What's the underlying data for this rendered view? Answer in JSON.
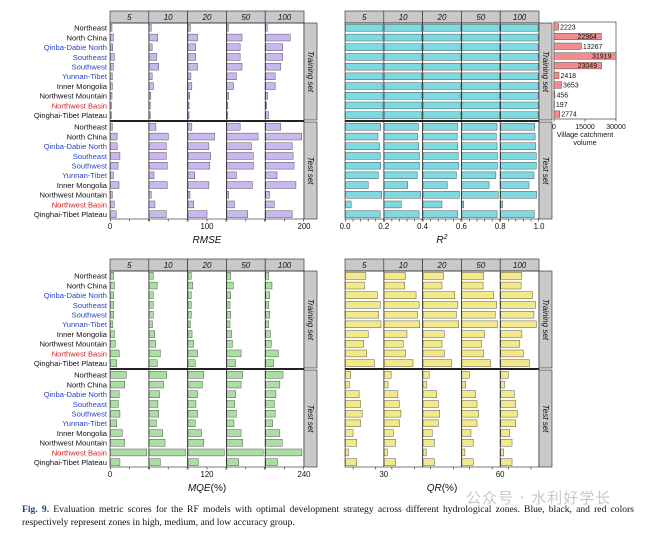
{
  "figure": {
    "caption_label": "Fig. 9.",
    "caption_text": "Evaluation metric scores for the RF models with optimal development strategy across different hydrological zones. Blue, black, and red colors respectively represent zones in high, medium, and low accuracy group.",
    "watermark": "公众号 · 水利好学长"
  },
  "colors": {
    "rmse": "#c8b8ee",
    "r2": "#7fd9e0",
    "mqe": "#a9e0a2",
    "qr": "#f4e98a",
    "catchment": "#f08c8c",
    "high": "#2745c4",
    "medium": "#111111",
    "low": "#d21f1f",
    "strip": "#c9c9c9",
    "band": "#888888"
  },
  "chart_data": {
    "zones": [
      {
        "name": "Northeast",
        "group": "medium"
      },
      {
        "name": "North China",
        "group": "medium"
      },
      {
        "name": "Qinba-Dabie North",
        "group": "high"
      },
      {
        "name": "Southeast",
        "group": "high"
      },
      {
        "name": "Southwest",
        "group": "high"
      },
      {
        "name": "Yunnan-Tibet",
        "group": "high"
      },
      {
        "name": "Inner Mongolia",
        "group": "medium"
      },
      {
        "name": "Northwest Mountain",
        "group": "medium"
      },
      {
        "name": "Northwest Basin",
        "group": "low"
      },
      {
        "name": "Qinghai-Tibet Plateau",
        "group": "medium"
      }
    ],
    "strategies": [
      "5",
      "10",
      "20",
      "50",
      "100"
    ],
    "sets": [
      "Training set",
      "Test set"
    ],
    "catchment": {
      "title": "Village catchment volume",
      "values": [
        2223,
        22964,
        13267,
        31919,
        23049,
        2418,
        3653,
        456,
        197,
        2774
      ],
      "xlim": [
        0,
        30000
      ],
      "ticks": [
        0,
        15000,
        30000
      ]
    },
    "panels": [
      {
        "type": "bar",
        "metric": "rmse",
        "xlabel": "RMSE",
        "sup": "",
        "xlim": [
          0,
          200
        ],
        "ticks": [
          0,
          100,
          200
        ],
        "ticklabels": [
          "0",
          "100",
          "200"
        ],
        "training": [
          [
            8,
            10,
            12,
            8,
            8
          ],
          [
            15,
            45,
            50,
            80,
            130
          ],
          [
            12,
            15,
            40,
            70,
            90
          ],
          [
            20,
            40,
            40,
            70,
            90
          ],
          [
            15,
            50,
            50,
            80,
            80
          ],
          [
            10,
            15,
            15,
            50,
            50
          ],
          [
            10,
            22,
            20,
            35,
            50
          ],
          [
            8,
            8,
            8,
            10,
            10
          ],
          [
            5,
            5,
            5,
            5,
            5
          ],
          [
            5,
            5,
            5,
            5,
            15
          ]
        ],
        "test": [
          [
            10,
            35,
            20,
            70,
            80
          ],
          [
            35,
            100,
            140,
            165,
            190
          ],
          [
            35,
            90,
            110,
            130,
            140
          ],
          [
            50,
            90,
            120,
            140,
            145
          ],
          [
            40,
            95,
            115,
            140,
            150
          ],
          [
            15,
            25,
            35,
            50,
            60
          ],
          [
            45,
            95,
            110,
            135,
            160
          ],
          [
            10,
            10,
            10,
            10,
            20
          ],
          [
            20,
            30,
            30,
            40,
            45
          ],
          [
            30,
            90,
            100,
            110,
            140
          ]
        ]
      },
      {
        "type": "bar",
        "metric": "r2",
        "xlabel": "R",
        "sup": "2",
        "xlim": [
          0,
          1
        ],
        "ticks": [
          0,
          0.2,
          0.4,
          0.6,
          0.8,
          1.0
        ],
        "ticklabels": [
          "0.0",
          "0.2",
          "0.4",
          "0.6",
          "0.8",
          "1.0"
        ],
        "training": [
          [
            0.99,
            0.99,
            0.99,
            0.99,
            0.99
          ],
          [
            0.99,
            0.99,
            0.99,
            0.99,
            0.99
          ],
          [
            0.99,
            0.99,
            0.99,
            0.99,
            0.99
          ],
          [
            0.99,
            0.99,
            0.99,
            0.99,
            0.99
          ],
          [
            0.99,
            0.99,
            0.99,
            0.99,
            0.99
          ],
          [
            0.99,
            0.99,
            0.99,
            0.99,
            0.99
          ],
          [
            0.99,
            0.99,
            0.99,
            0.99,
            0.99
          ],
          [
            0.99,
            0.99,
            0.99,
            0.99,
            0.99
          ],
          [
            0.99,
            0.99,
            0.99,
            0.99,
            0.99
          ],
          [
            0.99,
            0.99,
            0.99,
            0.99,
            0.99
          ]
        ],
        "test": [
          [
            0.93,
            0.9,
            0.92,
            0.93,
            0.9
          ],
          [
            0.86,
            0.88,
            0.9,
            0.91,
            0.91
          ],
          [
            0.9,
            0.91,
            0.92,
            0.93,
            0.93
          ],
          [
            0.92,
            0.93,
            0.93,
            0.94,
            0.94
          ],
          [
            0.93,
            0.93,
            0.94,
            0.94,
            0.94
          ],
          [
            0.87,
            0.87,
            0.88,
            0.9,
            0.88
          ],
          [
            0.6,
            0.62,
            0.64,
            0.72,
            0.75
          ],
          [
            0.96,
            0.96,
            0.96,
            0.96,
            0.95
          ],
          [
            0.15,
            0.45,
            0.5,
            0.05,
            0.05
          ],
          [
            0.92,
            0.92,
            0.92,
            0.93,
            0.89
          ]
        ]
      },
      {
        "type": "bar",
        "metric": "mqe",
        "xlabel": "MQE",
        "sup": "",
        "unit": "(%)",
        "xlim": [
          0,
          240
        ],
        "ticks": [
          0,
          120,
          240
        ],
        "ticklabels": [
          "0",
          "120",
          "240"
        ],
        "training": [
          [
            20,
            25,
            20,
            25,
            20
          ],
          [
            25,
            50,
            30,
            40,
            40
          ],
          [
            20,
            25,
            20,
            25,
            25
          ],
          [
            20,
            25,
            20,
            20,
            20
          ],
          [
            20,
            25,
            20,
            25,
            25
          ],
          [
            15,
            20,
            15,
            20,
            20
          ],
          [
            25,
            35,
            25,
            30,
            30
          ],
          [
            30,
            40,
            35,
            35,
            35
          ],
          [
            55,
            70,
            60,
            90,
            80
          ],
          [
            40,
            50,
            45,
            55,
            50
          ]
        ],
        "test": [
          [
            100,
            110,
            100,
            100,
            110
          ],
          [
            90,
            90,
            90,
            90,
            90
          ],
          [
            55,
            65,
            60,
            55,
            65
          ],
          [
            50,
            55,
            50,
            50,
            55
          ],
          [
            60,
            60,
            60,
            60,
            60
          ],
          [
            40,
            45,
            45,
            45,
            45
          ],
          [
            75,
            85,
            85,
            90,
            90
          ],
          [
            90,
            100,
            100,
            100,
            105
          ],
          [
            230,
            230,
            230,
            230,
            230
          ],
          [
            60,
            70,
            65,
            75,
            75
          ]
        ]
      },
      {
        "type": "bar",
        "metric": "qr",
        "xlabel": "QR",
        "sup": "",
        "unit": "(%)",
        "xlim": [
          20,
          70
        ],
        "ticks": [
          30,
          60
        ],
        "ticklabels": [
          "30",
          "60"
        ],
        "training": [
          [
            47,
            48,
            47,
            49,
            48
          ],
          [
            45,
            47,
            45,
            48,
            47
          ],
          [
            62,
            62,
            62,
            62,
            62
          ],
          [
            66,
            66,
            66,
            66,
            66
          ],
          [
            64,
            64,
            64,
            64,
            64
          ],
          [
            67,
            67,
            67,
            67,
            67
          ],
          [
            50,
            50,
            48,
            50,
            48
          ],
          [
            44,
            45,
            45,
            46,
            45
          ],
          [
            48,
            48,
            48,
            49,
            50
          ],
          [
            58,
            58,
            58,
            58,
            58
          ]
        ],
        "test": [
          [
            27,
            29,
            28,
            30,
            30
          ],
          [
            25,
            25,
            25,
            25,
            25
          ],
          [
            38,
            38,
            38,
            38,
            38
          ],
          [
            40,
            40,
            40,
            40,
            40
          ],
          [
            42,
            42,
            42,
            42,
            42
          ],
          [
            40,
            40,
            40,
            40,
            40
          ],
          [
            30,
            32,
            32,
            32,
            32
          ],
          [
            35,
            35,
            35,
            35,
            35
          ],
          [
            24,
            24,
            24,
            24,
            24
          ],
          [
            35,
            35,
            35,
            35,
            35
          ]
        ]
      }
    ]
  }
}
